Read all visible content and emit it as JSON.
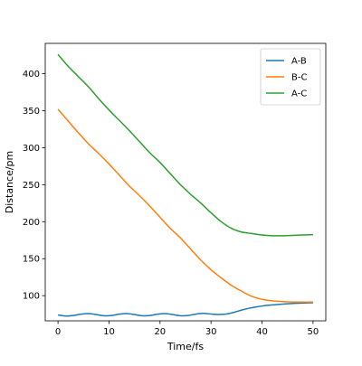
{
  "chart_data": {
    "type": "line",
    "title": "",
    "xlabel": "Time/fs",
    "ylabel": "Distance/pm",
    "xlim": [
      -2.5,
      52.5
    ],
    "ylim": [
      66,
      441
    ],
    "xticks": [
      0,
      10,
      20,
      30,
      40,
      50
    ],
    "yticks": [
      100,
      150,
      200,
      250,
      300,
      350,
      400
    ],
    "grid": false,
    "legend_position": "top-right",
    "series": [
      {
        "name": "A-B",
        "color": "#1f77b4",
        "x": [
          0,
          1.5,
          3,
          4.5,
          6,
          7.5,
          9,
          10.5,
          12,
          13.5,
          15,
          16.5,
          18,
          19.5,
          21,
          22.5,
          24,
          25.5,
          27,
          28.5,
          30,
          31.5,
          33,
          34.5,
          36,
          37.5,
          39,
          40.5,
          42,
          43.5,
          45,
          46.5,
          48,
          50
        ],
        "y": [
          74,
          72.5,
          73.2,
          75,
          75.8,
          74.5,
          72.8,
          73.2,
          75,
          75.8,
          74.5,
          72.8,
          73.2,
          75,
          75.8,
          74.5,
          72.8,
          73.2,
          75,
          76,
          75.2,
          74.5,
          75.2,
          77.5,
          80.5,
          83,
          85,
          86.5,
          87.5,
          88.3,
          89,
          89.6,
          90,
          90.5
        ]
      },
      {
        "name": "B-C",
        "color": "#ff7f0e",
        "x": [
          0,
          2,
          4,
          6,
          8,
          10,
          12,
          14,
          16,
          18,
          20,
          22,
          24,
          26,
          28,
          30,
          32,
          34,
          36,
          38,
          40,
          42,
          44,
          46,
          48,
          50
        ],
        "y": [
          352,
          336,
          320,
          305,
          292,
          278,
          263,
          248,
          235,
          221,
          206,
          191,
          178,
          163,
          148,
          135,
          124,
          114,
          106,
          99,
          95,
          93,
          92,
          91.5,
          91.3,
          91.3
        ]
      },
      {
        "name": "A-C",
        "color": "#2ca02c",
        "x": [
          0,
          2,
          4,
          6,
          8,
          10,
          12,
          14,
          16,
          18,
          20,
          22,
          24,
          26,
          28,
          30,
          32,
          34,
          36,
          38,
          40,
          42,
          44,
          46,
          48,
          50
        ],
        "y": [
          426,
          410,
          396,
          382,
          366,
          351,
          337,
          323,
          308,
          293,
          280,
          265,
          250,
          237,
          225,
          212,
          200,
          191,
          186,
          184,
          182,
          181,
          181,
          181.5,
          182,
          182.5
        ]
      }
    ]
  }
}
